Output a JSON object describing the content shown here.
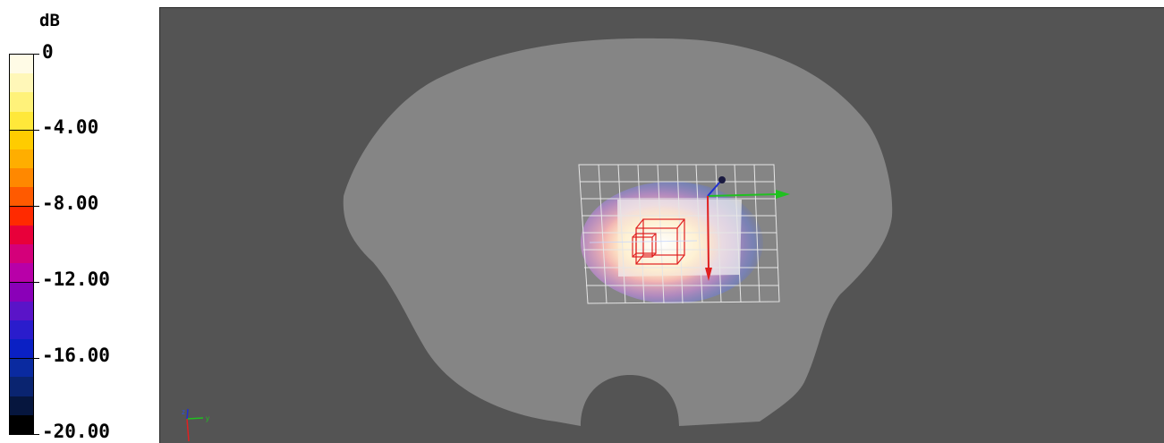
{
  "legend": {
    "unit": "dB",
    "ticks": [
      "0",
      "-4.00",
      "-8.00",
      "-12.00",
      "-16.00",
      "-20.00"
    ],
    "colors": [
      "#fffbe6",
      "#fff7b8",
      "#fff27a",
      "#ffe83a",
      "#ffcc00",
      "#ffae00",
      "#ff8800",
      "#ff5a00",
      "#ff2a00",
      "#e8003a",
      "#d4007a",
      "#b800a8",
      "#8a00b8",
      "#5a14c8",
      "#2a1ccc",
      "#0a20c4",
      "#0a2aa0",
      "#0a2470",
      "#06163e",
      "#000000"
    ]
  },
  "viewport": {
    "background": "#545454",
    "phantom_color": "#858585",
    "grid_color": "#e6e6e6",
    "axis_triad": {
      "x_label": "x",
      "y_label": "y",
      "z_label": "z"
    }
  }
}
